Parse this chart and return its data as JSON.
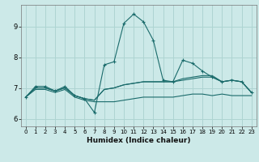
{
  "title": "",
  "xlabel": "Humidex (Indice chaleur)",
  "background_color": "#cce9e8",
  "grid_color": "#aed4d2",
  "line_color": "#1a6b6b",
  "xlim": [
    -0.5,
    23.5
  ],
  "ylim": [
    5.75,
    9.7
  ],
  "xticks": [
    0,
    1,
    2,
    3,
    4,
    5,
    6,
    7,
    8,
    9,
    10,
    11,
    12,
    13,
    14,
    15,
    16,
    17,
    18,
    19,
    20,
    21,
    22,
    23
  ],
  "yticks": [
    6,
    7,
    8,
    9
  ],
  "lines": [
    {
      "x": [
        0,
        1,
        2,
        3,
        4,
        5,
        6,
        7,
        8,
        9,
        10,
        11,
        12,
        13,
        14,
        15,
        16,
        17,
        18,
        19,
        20,
        21,
        22,
        23
      ],
      "y": [
        6.7,
        7.05,
        7.05,
        6.9,
        7.05,
        6.75,
        6.65,
        6.2,
        7.75,
        7.85,
        9.1,
        9.4,
        9.15,
        8.55,
        7.25,
        7.2,
        7.9,
        7.8,
        7.55,
        7.35,
        7.2,
        7.25,
        7.2,
        6.85
      ],
      "marker": "+"
    },
    {
      "x": [
        0,
        1,
        2,
        3,
        4,
        5,
        6,
        7,
        8,
        9,
        10,
        11,
        12,
        13,
        14,
        15,
        16,
        17,
        18,
        19,
        20,
        21,
        22,
        23
      ],
      "y": [
        6.7,
        7.0,
        7.0,
        6.9,
        7.0,
        6.75,
        6.65,
        6.6,
        6.95,
        7.0,
        7.1,
        7.15,
        7.2,
        7.2,
        7.2,
        7.2,
        7.3,
        7.35,
        7.4,
        7.4,
        7.2,
        7.25,
        7.2,
        6.85
      ],
      "marker": null
    },
    {
      "x": [
        0,
        1,
        2,
        3,
        4,
        5,
        6,
        7,
        8,
        9,
        10,
        11,
        12,
        13,
        14,
        15,
        16,
        17,
        18,
        19,
        20,
        21,
        22,
        23
      ],
      "y": [
        6.7,
        7.0,
        7.0,
        6.9,
        7.0,
        6.75,
        6.65,
        6.6,
        6.95,
        7.0,
        7.1,
        7.15,
        7.2,
        7.2,
        7.2,
        7.2,
        7.25,
        7.3,
        7.35,
        7.35,
        7.2,
        7.25,
        7.2,
        6.85
      ],
      "marker": null
    },
    {
      "x": [
        0,
        1,
        2,
        3,
        4,
        5,
        6,
        7,
        8,
        9,
        10,
        11,
        12,
        13,
        14,
        15,
        16,
        17,
        18,
        19,
        20,
        21,
        22,
        23
      ],
      "y": [
        6.7,
        6.95,
        6.95,
        6.85,
        6.95,
        6.7,
        6.6,
        6.55,
        6.55,
        6.55,
        6.6,
        6.65,
        6.7,
        6.7,
        6.7,
        6.7,
        6.75,
        6.8,
        6.8,
        6.75,
        6.8,
        6.75,
        6.75,
        6.75
      ],
      "marker": null
    }
  ]
}
